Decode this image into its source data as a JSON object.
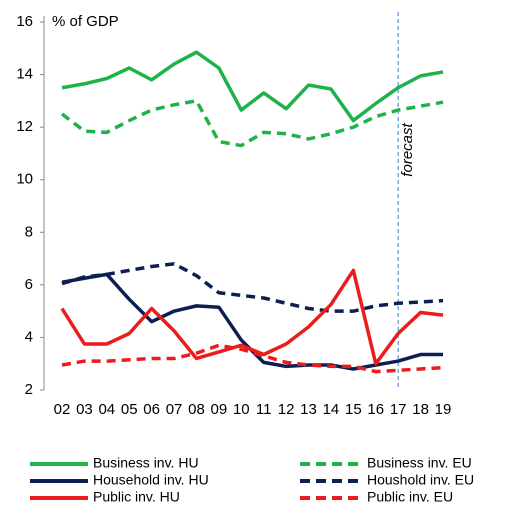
{
  "chart_data": {
    "type": "line",
    "y_label": "% of GDP",
    "categories": [
      "02",
      "03",
      "04",
      "05",
      "06",
      "07",
      "08",
      "09",
      "10",
      "11",
      "12",
      "13",
      "14",
      "15",
      "16",
      "17",
      "18",
      "19"
    ],
    "ylim": [
      2,
      16
    ],
    "yticks": [
      2,
      4,
      6,
      8,
      10,
      12,
      14,
      16
    ],
    "annotations": [
      {
        "text": "forecast",
        "x": "17"
      }
    ],
    "legend": "bottom",
    "series": [
      {
        "name": "Business inv. HU",
        "color": "#20b24a",
        "dashed": false,
        "values": [
          13.5,
          13.65,
          13.85,
          14.25,
          13.8,
          14.4,
          14.85,
          14.25,
          12.65,
          13.3,
          12.7,
          13.6,
          13.45,
          12.25,
          12.9,
          13.5,
          13.95,
          14.1
        ]
      },
      {
        "name": "Business inv. EU",
        "color": "#20b24a",
        "dashed": true,
        "values": [
          12.5,
          11.85,
          11.8,
          12.25,
          12.65,
          12.85,
          13.0,
          11.45,
          11.3,
          11.8,
          11.75,
          11.55,
          11.75,
          12.0,
          12.4,
          12.65,
          12.8,
          12.95
        ]
      },
      {
        "name": "Household inv. HU",
        "color": "#0c1f50",
        "dashed": false,
        "values": [
          6.1,
          6.25,
          6.4,
          5.45,
          4.6,
          5.0,
          5.2,
          5.15,
          3.9,
          3.05,
          2.9,
          2.95,
          2.95,
          2.8,
          2.95,
          3.1,
          3.35,
          3.35
        ]
      },
      {
        "name": "Houshold inv. EU",
        "color": "#0c1f50",
        "dashed": true,
        "values": [
          6.05,
          6.3,
          6.4,
          6.55,
          6.7,
          6.8,
          6.35,
          5.7,
          5.6,
          5.5,
          5.3,
          5.1,
          5.0,
          5.0,
          5.2,
          5.3,
          5.35,
          5.4
        ]
      },
      {
        "name": "Public inv. HU",
        "color": "#ec1c1c",
        "dashed": false,
        "values": [
          5.1,
          3.75,
          3.75,
          4.15,
          5.1,
          4.25,
          3.2,
          3.45,
          3.7,
          3.35,
          3.75,
          4.4,
          5.25,
          6.55,
          3.0,
          4.15,
          4.95,
          4.85
        ]
      },
      {
        "name": "Public inv. EU",
        "color": "#ec1c1c",
        "dashed": true,
        "values": [
          2.95,
          3.1,
          3.1,
          3.15,
          3.2,
          3.2,
          3.4,
          3.7,
          3.55,
          3.3,
          3.05,
          2.95,
          2.9,
          2.9,
          2.7,
          2.75,
          2.8,
          2.85
        ]
      }
    ]
  }
}
